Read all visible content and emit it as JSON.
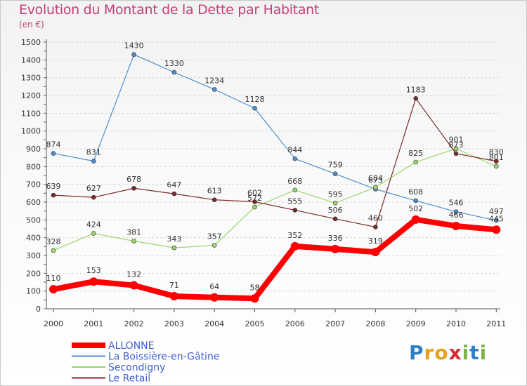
{
  "title": "Evolution du Montant de la Dette par Habitant",
  "unit_label": "(en €)",
  "logo_text": "Proxiti",
  "colors": {
    "title": "#c0407a",
    "legend_text": "#4060d0"
  },
  "chart_data": {
    "type": "line",
    "title": "Evolution du Montant de la Dette par Habitant",
    "ylabel": "(en €)",
    "xlabel": "",
    "x": [
      "2000",
      "2001",
      "2002",
      "2003",
      "2004",
      "2005",
      "2006",
      "2007",
      "2008",
      "2009",
      "2010",
      "2011"
    ],
    "yticks": [
      0,
      100,
      200,
      300,
      400,
      500,
      600,
      700,
      800,
      900,
      1000,
      1100,
      1200,
      1300,
      1400,
      1500
    ],
    "ylim": [
      0,
      1500
    ],
    "grid": "horizontal dashed",
    "legend_position": "bottom-left",
    "series": [
      {
        "name": "ALLONNE",
        "color": "#ff0000",
        "width": 8,
        "values": [
          110,
          153,
          132,
          71,
          64,
          58,
          352,
          336,
          319,
          502,
          466,
          445
        ]
      },
      {
        "name": "La Boissière-en-Gâtine",
        "color": "#4d8fd0",
        "width": 1.2,
        "values": [
          874,
          831,
          1430,
          1330,
          1234,
          1128,
          844,
          759,
          673,
          608,
          546,
          497
        ]
      },
      {
        "name": "Secondigny",
        "color": "#99d86a",
        "width": 1.2,
        "values": [
          328,
          424,
          381,
          343,
          357,
          572,
          668,
          595,
          684,
          825,
          901,
          801
        ]
      },
      {
        "name": "Le Retail",
        "color": "#7a2a2a",
        "width": 1.2,
        "values": [
          639,
          627,
          678,
          647,
          613,
          602,
          555,
          506,
          460,
          1183,
          873,
          830
        ]
      }
    ]
  }
}
